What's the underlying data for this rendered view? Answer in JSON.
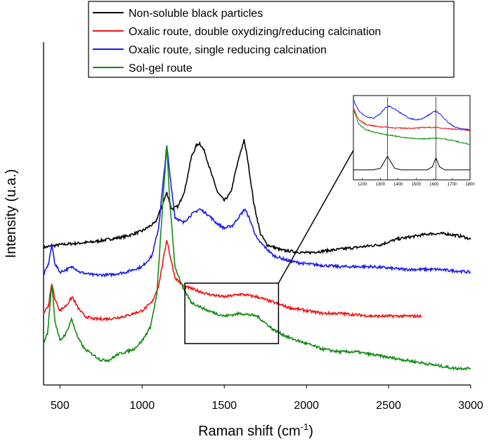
{
  "chart_data": {
    "type": "line",
    "title": "",
    "xlabel_main": "Raman shift (cm",
    "xlabel_sup": "-1",
    "xlabel_close": ")",
    "ylabel": "Intensity (u.a.)",
    "xlim": [
      400,
      3000
    ],
    "ylim": [
      0,
      100
    ],
    "x_ticks": [
      500,
      1000,
      1500,
      2000,
      2500,
      3000
    ],
    "y_ticks_shown": false,
    "legend_placement": "top-center",
    "series": [
      {
        "name": "Non-soluble black particles",
        "color": "#000000",
        "points": [
          [
            400,
            47
          ],
          [
            500,
            48
          ],
          [
            700,
            49
          ],
          [
            900,
            51
          ],
          [
            1000,
            53
          ],
          [
            1080,
            56
          ],
          [
            1120,
            62
          ],
          [
            1150,
            67
          ],
          [
            1180,
            61
          ],
          [
            1220,
            62
          ],
          [
            1260,
            68
          ],
          [
            1300,
            80
          ],
          [
            1330,
            84
          ],
          [
            1350,
            85
          ],
          [
            1380,
            82
          ],
          [
            1420,
            74
          ],
          [
            1460,
            67
          ],
          [
            1500,
            64
          ],
          [
            1540,
            67
          ],
          [
            1570,
            75
          ],
          [
            1600,
            82
          ],
          [
            1620,
            86
          ],
          [
            1640,
            80
          ],
          [
            1680,
            63
          ],
          [
            1720,
            52
          ],
          [
            1760,
            48
          ],
          [
            1850,
            46
          ],
          [
            2000,
            45
          ],
          [
            2150,
            46
          ],
          [
            2300,
            47
          ],
          [
            2450,
            48
          ],
          [
            2550,
            50
          ],
          [
            2650,
            51
          ],
          [
            2750,
            52
          ],
          [
            2850,
            52
          ],
          [
            2950,
            51
          ],
          [
            3000,
            50
          ]
        ]
      },
      {
        "name": "Oxalic route, double oxydizing/reducing calcination",
        "color": "#ee1111",
        "points": [
          [
            400,
            23
          ],
          [
            430,
            26
          ],
          [
            450,
            34
          ],
          [
            470,
            28
          ],
          [
            500,
            24
          ],
          [
            540,
            26
          ],
          [
            575,
            29
          ],
          [
            610,
            25
          ],
          [
            650,
            22
          ],
          [
            700,
            21
          ],
          [
            800,
            21
          ],
          [
            900,
            22
          ],
          [
            1000,
            24
          ],
          [
            1060,
            27
          ],
          [
            1100,
            33
          ],
          [
            1130,
            43
          ],
          [
            1150,
            50
          ],
          [
            1170,
            44
          ],
          [
            1200,
            36
          ],
          [
            1250,
            33
          ],
          [
            1300,
            32
          ],
          [
            1400,
            30
          ],
          [
            1500,
            29
          ],
          [
            1600,
            30
          ],
          [
            1700,
            29
          ],
          [
            1800,
            27
          ],
          [
            1900,
            25
          ],
          [
            2000,
            24
          ],
          [
            2100,
            23
          ],
          [
            2200,
            23
          ],
          [
            2400,
            22
          ],
          [
            2600,
            22
          ],
          [
            2700,
            22
          ]
        ]
      },
      {
        "name": "Oxalic route, single reducing calcination",
        "color": "#1a1aee",
        "points": [
          [
            400,
            37
          ],
          [
            430,
            41
          ],
          [
            450,
            48
          ],
          [
            470,
            41
          ],
          [
            500,
            38
          ],
          [
            540,
            39
          ],
          [
            580,
            40
          ],
          [
            620,
            38
          ],
          [
            700,
            37
          ],
          [
            800,
            37
          ],
          [
            900,
            38
          ],
          [
            1000,
            40
          ],
          [
            1060,
            44
          ],
          [
            1100,
            54
          ],
          [
            1130,
            72
          ],
          [
            1150,
            84
          ],
          [
            1170,
            73
          ],
          [
            1200,
            58
          ],
          [
            1250,
            56
          ],
          [
            1300,
            59
          ],
          [
            1350,
            61
          ],
          [
            1400,
            59
          ],
          [
            1450,
            56
          ],
          [
            1500,
            54
          ],
          [
            1550,
            55
          ],
          [
            1600,
            59
          ],
          [
            1625,
            61
          ],
          [
            1650,
            58
          ],
          [
            1700,
            50
          ],
          [
            1800,
            44
          ],
          [
            1900,
            42
          ],
          [
            2000,
            41
          ],
          [
            2200,
            40
          ],
          [
            2400,
            40
          ],
          [
            2600,
            39
          ],
          [
            2800,
            39
          ],
          [
            3000,
            38
          ]
        ]
      },
      {
        "name": "Sol-gel route",
        "color": "#138a13",
        "points": [
          [
            400,
            12
          ],
          [
            425,
            16
          ],
          [
            450,
            34
          ],
          [
            470,
            20
          ],
          [
            500,
            13
          ],
          [
            540,
            16
          ],
          [
            570,
            21
          ],
          [
            610,
            14
          ],
          [
            650,
            10
          ],
          [
            700,
            8
          ],
          [
            750,
            6
          ],
          [
            800,
            6
          ],
          [
            850,
            8
          ],
          [
            900,
            9
          ],
          [
            950,
            10
          ],
          [
            1000,
            13
          ],
          [
            1050,
            18
          ],
          [
            1090,
            30
          ],
          [
            1120,
            58
          ],
          [
            1150,
            84
          ],
          [
            1170,
            62
          ],
          [
            1200,
            40
          ],
          [
            1250,
            32
          ],
          [
            1300,
            27
          ],
          [
            1400,
            24
          ],
          [
            1500,
            22
          ],
          [
            1600,
            23
          ],
          [
            1700,
            22
          ],
          [
            1800,
            17
          ],
          [
            1900,
            14
          ],
          [
            2000,
            12
          ],
          [
            2100,
            10
          ],
          [
            2200,
            9
          ],
          [
            2300,
            9
          ],
          [
            2400,
            8
          ],
          [
            2500,
            7
          ],
          [
            2600,
            6
          ],
          [
            2700,
            5
          ],
          [
            2800,
            4
          ],
          [
            2900,
            3
          ],
          [
            3000,
            3
          ]
        ]
      }
    ],
    "zoom_box": {
      "x": [
        1260,
        1830
      ],
      "y": [
        12,
        34
      ]
    },
    "inset": {
      "xlim": [
        1150,
        1800
      ],
      "x_ticks": [
        1200,
        1300,
        1400,
        1500,
        1600,
        1700,
        1800
      ],
      "reference_lines": [
        1340,
        1610
      ],
      "series": [
        {
          "color": "#1a1aee",
          "points": [
            [
              1150,
              94
            ],
            [
              1180,
              80
            ],
            [
              1220,
              72
            ],
            [
              1260,
              70
            ],
            [
              1300,
              76
            ],
            [
              1330,
              84
            ],
            [
              1350,
              86
            ],
            [
              1380,
              82
            ],
            [
              1420,
              76
            ],
            [
              1460,
              70
            ],
            [
              1500,
              68
            ],
            [
              1540,
              70
            ],
            [
              1580,
              76
            ],
            [
              1610,
              80
            ],
            [
              1640,
              74
            ],
            [
              1680,
              64
            ],
            [
              1720,
              58
            ],
            [
              1760,
              56
            ],
            [
              1800,
              55
            ]
          ]
        },
        {
          "color": "#ee1111",
          "points": [
            [
              1150,
              84
            ],
            [
              1180,
              68
            ],
            [
              1220,
              62
            ],
            [
              1260,
              60
            ],
            [
              1300,
              59
            ],
            [
              1350,
              58
            ],
            [
              1400,
              57
            ],
            [
              1450,
              57
            ],
            [
              1500,
              57
            ],
            [
              1550,
              58
            ],
            [
              1600,
              58
            ],
            [
              1650,
              57
            ],
            [
              1700,
              56
            ],
            [
              1750,
              55
            ],
            [
              1800,
              54
            ]
          ]
        },
        {
          "color": "#138a13",
          "points": [
            [
              1150,
              82
            ],
            [
              1180,
              62
            ],
            [
              1220,
              55
            ],
            [
              1260,
              52
            ],
            [
              1300,
              50
            ],
            [
              1350,
              48
            ],
            [
              1400,
              46
            ],
            [
              1450,
              44
            ],
            [
              1500,
              43
            ],
            [
              1550,
              43
            ],
            [
              1600,
              44
            ],
            [
              1650,
              43
            ],
            [
              1700,
              41
            ],
            [
              1750,
              38
            ],
            [
              1800,
              36
            ]
          ]
        },
        {
          "color": "#000000",
          "points": [
            [
              1150,
              2
            ],
            [
              1260,
              2
            ],
            [
              1300,
              4
            ],
            [
              1320,
              12
            ],
            [
              1340,
              20
            ],
            [
              1360,
              12
            ],
            [
              1380,
              4
            ],
            [
              1420,
              2
            ],
            [
              1560,
              2
            ],
            [
              1590,
              6
            ],
            [
              1610,
              18
            ],
            [
              1630,
              6
            ],
            [
              1660,
              2
            ],
            [
              1800,
              2
            ]
          ]
        }
      ]
    }
  }
}
